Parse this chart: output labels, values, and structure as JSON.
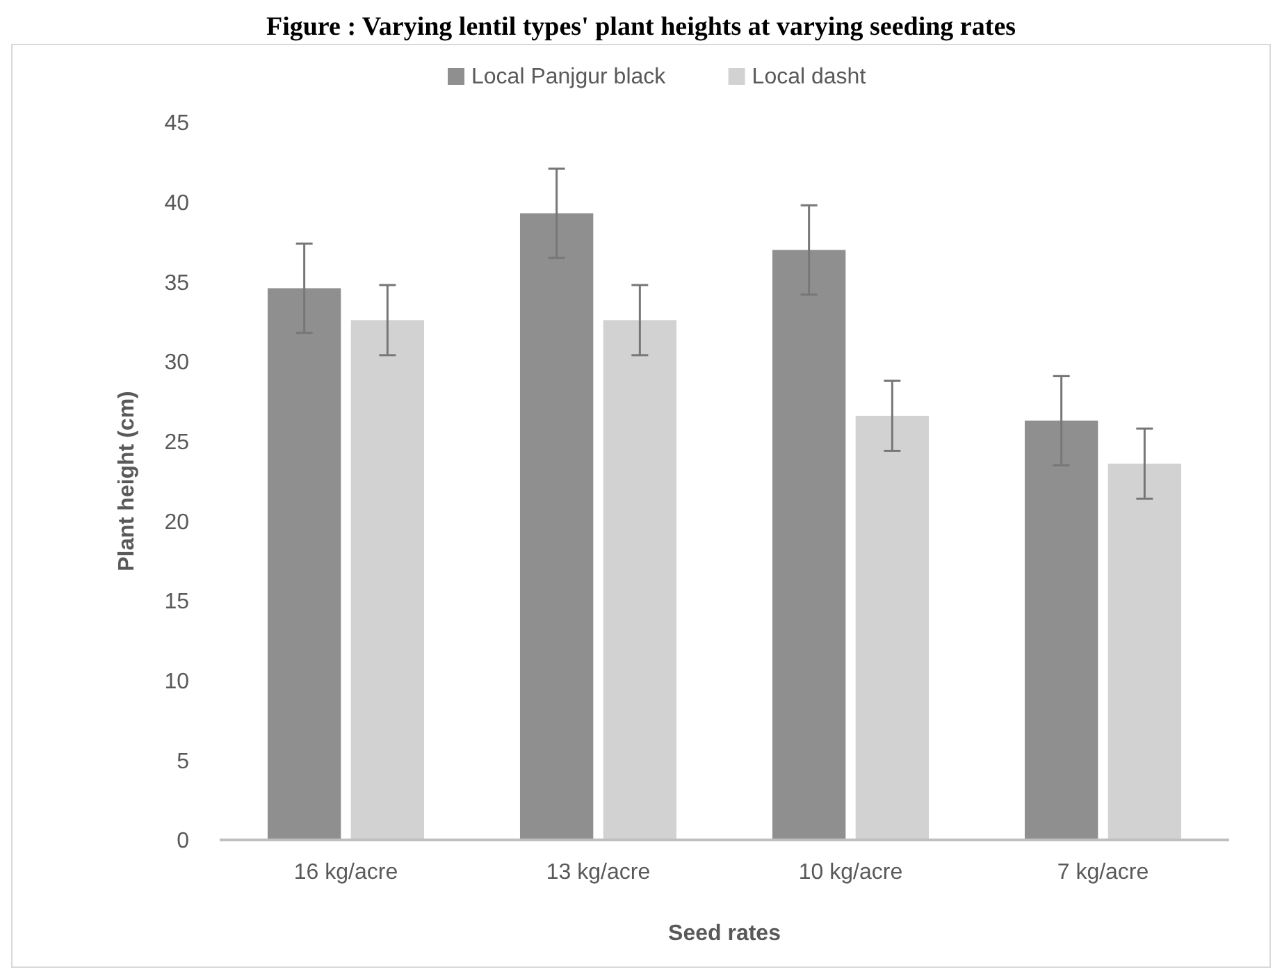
{
  "chart_data": {
    "type": "bar",
    "title": "Figure : Varying lentil types' plant heights at varying seeding rates",
    "xlabel": "Seed rates",
    "ylabel": "Plant height (cm)",
    "categories": [
      "16 kg/acre",
      "13 kg/acre",
      "10 kg/acre",
      "7 kg/acre"
    ],
    "series": [
      {
        "name": "Local Panjgur black",
        "color": "#8f8f8f",
        "values": [
          34.6,
          39.3,
          37.0,
          26.3
        ],
        "errors": [
          2.8,
          2.8,
          2.8,
          2.8
        ]
      },
      {
        "name": "Local dasht",
        "color": "#d2d2d2",
        "values": [
          32.6,
          32.6,
          26.6,
          23.6
        ],
        "errors": [
          2.2,
          2.2,
          2.2,
          2.2
        ]
      }
    ],
    "ylim": [
      0,
      45
    ],
    "yticks": [
      0,
      5,
      10,
      15,
      20,
      25,
      30,
      35,
      40,
      45
    ],
    "grid": false,
    "legend": "top"
  }
}
